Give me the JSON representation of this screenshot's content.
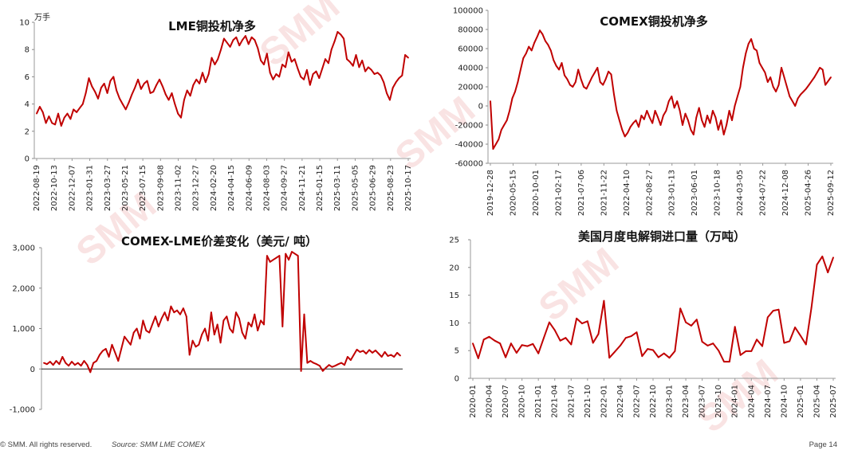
{
  "page": {
    "copyright": "© SMM. All rights reserved.",
    "source": "Source: SMM  LME  COMEX",
    "page_number": "Page 14",
    "watermark": "SMM",
    "line_color": "#c00000"
  },
  "chart_data": [
    {
      "type": "line",
      "title": "LME铜投机净多",
      "unit_label": "万手",
      "ylim": [
        0,
        10
      ],
      "yticks": [
        "0",
        "2",
        "4",
        "6",
        "8",
        "10"
      ],
      "xtick_labels": [
        "2022-08-19",
        "2022-10-13",
        "2022-12-07",
        "2023-01-31",
        "2023-03-27",
        "2023-05-21",
        "2023-07-15",
        "2023-09-08",
        "2023-11-02",
        "2023-12-27",
        "2024-02-20",
        "2024-04-15",
        "2024-06-09",
        "2024-08-03",
        "2024-09-27",
        "2024-11-21",
        "2025-01-15",
        "2025-03-11",
        "2025-05-05",
        "2025-06-29",
        "2025-08-23",
        "2025-10-17"
      ],
      "series": [
        {
          "values": [
            3.3,
            3.8,
            3.4,
            2.6,
            3.1,
            2.6,
            2.5,
            3.3,
            2.4,
            3.0,
            3.3,
            2.9,
            3.6,
            3.4,
            3.7,
            4.0,
            4.8,
            5.9,
            5.3,
            4.9,
            4.4,
            5.2,
            5.5,
            4.8,
            5.7,
            6.0,
            5.0,
            4.4,
            4.0,
            3.6,
            4.1,
            4.7,
            5.2,
            5.8,
            5.1,
            5.5,
            5.7,
            4.8,
            4.9,
            5.4,
            5.8,
            5.3,
            4.7,
            4.3,
            4.8,
            4.0,
            3.3,
            3.0,
            4.3,
            5.0,
            4.6,
            5.4,
            5.8,
            5.5,
            6.3,
            5.6,
            6.2,
            7.4,
            6.9,
            7.3,
            8.0,
            8.8,
            8.5,
            8.2,
            8.7,
            8.9,
            8.3,
            8.7,
            9.0,
            8.4,
            8.9,
            8.7,
            8.1,
            7.2,
            6.9,
            7.7,
            6.3,
            5.8,
            6.2,
            6.0,
            6.9,
            6.7,
            7.8,
            7.1,
            7.3,
            6.6,
            6.0,
            5.8,
            6.5,
            5.4,
            6.2,
            6.4,
            5.9,
            6.6,
            7.3,
            7.0,
            8.0,
            8.6,
            9.3,
            9.1,
            8.8,
            7.3,
            7.1,
            6.8,
            7.6,
            6.7,
            7.2,
            6.4,
            6.7,
            6.5,
            6.2,
            6.3,
            6.1,
            5.6,
            4.8,
            4.3,
            5.2,
            5.6,
            5.9,
            6.1,
            7.6,
            7.4
          ]
        }
      ]
    },
    {
      "type": "line",
      "title": "COMEX铜投机净多",
      "ylim": [
        -60000,
        100000
      ],
      "yticks": [
        "-60000",
        "-40000",
        "-20000",
        "0",
        "20000",
        "40000",
        "60000",
        "80000",
        "100000"
      ],
      "xtick_labels": [
        "2019-12-28",
        "2020-05-15",
        "2020-10-01",
        "2021-02-17",
        "2021-07-06",
        "2021-11-22",
        "2022-04-10",
        "2022-08-27",
        "2023-01-13",
        "2023-06-01",
        "2023-10-18",
        "2024-03-05",
        "2024-07-22",
        "2024-12-08",
        "2025-04-26",
        "2025-09-12"
      ],
      "series": [
        {
          "values": [
            5000,
            -45000,
            -40000,
            -35000,
            -25000,
            -20000,
            -15000,
            -5000,
            8000,
            15000,
            25000,
            38000,
            50000,
            55000,
            62000,
            58000,
            66000,
            72000,
            79000,
            75000,
            68000,
            64000,
            58000,
            48000,
            42000,
            38000,
            45000,
            32000,
            28000,
            22000,
            20000,
            25000,
            38000,
            28000,
            20000,
            18000,
            24000,
            30000,
            35000,
            40000,
            25000,
            22000,
            28000,
            36000,
            33000,
            12000,
            -5000,
            -15000,
            -25000,
            -32000,
            -28000,
            -22000,
            -18000,
            -15000,
            -22000,
            -10000,
            -14000,
            -5000,
            -12000,
            -18000,
            -5000,
            -12000,
            -20000,
            -10000,
            -5000,
            5000,
            10000,
            -2000,
            5000,
            -5000,
            -20000,
            -8000,
            -15000,
            -25000,
            -30000,
            -12000,
            -2000,
            -15000,
            -22000,
            -10000,
            -18000,
            -5000,
            -12000,
            -25000,
            -15000,
            -30000,
            -20000,
            -5000,
            -15000,
            0,
            10000,
            20000,
            40000,
            55000,
            65000,
            70000,
            60000,
            58000,
            45000,
            40000,
            35000,
            25000,
            30000,
            20000,
            15000,
            22000,
            40000,
            30000,
            20000,
            10000,
            5000,
            0,
            8000,
            12000,
            15000,
            18000,
            22000,
            26000,
            30000,
            35000,
            40000,
            38000,
            22000,
            26000,
            30000
          ]
        }
      ]
    },
    {
      "type": "line",
      "title": "COMEX-LME价差变化（美元/ 吨）",
      "ylim": [
        -1000,
        3000
      ],
      "yticks": [
        "-1,000",
        "0",
        "1,000",
        "2,000",
        "3,000"
      ],
      "series": [
        {
          "values": [
            150,
            120,
            180,
            100,
            200,
            120,
            300,
            150,
            80,
            180,
            100,
            150,
            80,
            200,
            100,
            -80,
            150,
            200,
            350,
            450,
            500,
            300,
            600,
            400,
            200,
            500,
            800,
            700,
            600,
            900,
            1000,
            750,
            1200,
            950,
            900,
            1100,
            1300,
            1050,
            1250,
            1400,
            1200,
            1550,
            1400,
            1450,
            1350,
            1500,
            1300,
            350,
            700,
            550,
            600,
            850,
            1000,
            700,
            1400,
            850,
            1100,
            650,
            1200,
            1300,
            1000,
            900,
            1400,
            1250,
            900,
            750,
            1150,
            1050,
            1350,
            950,
            1200,
            1100,
            2800,
            2650,
            2700,
            2750,
            2800,
            1050,
            2850,
            2700,
            2900,
            2850,
            2800,
            -50,
            1350,
            150,
            200,
            150,
            120,
            80,
            -50,
            30,
            100,
            50,
            80,
            120,
            150,
            100,
            300,
            220,
            350,
            480,
            420,
            450,
            380,
            470,
            400,
            460,
            380,
            300,
            420,
            320,
            350,
            300,
            400,
            330
          ]
        }
      ]
    },
    {
      "type": "line",
      "title": "美国月度电解铜进口量（万吨）",
      "ylim": [
        0,
        25
      ],
      "yticks": [
        "0",
        "5",
        "10",
        "15",
        "20",
        "25"
      ],
      "xtick_labels": [
        "2020-01",
        "2020-04",
        "2020-07",
        "2020-10",
        "2021-01",
        "2021-04",
        "2021-07",
        "2021-10",
        "2022-01",
        "2022-04",
        "2022-07",
        "2022-10",
        "2023-01",
        "2023-04",
        "2023-07",
        "2023-10",
        "2024-01",
        "2024-04",
        "2024-07",
        "2024-10",
        "2025-01",
        "2025-04",
        "2025-07"
      ],
      "series": [
        {
          "values": [
            6.3,
            3.6,
            7.0,
            7.5,
            6.8,
            6.3,
            3.8,
            6.3,
            4.6,
            6.0,
            5.8,
            6.2,
            4.5,
            7.3,
            10.1,
            8.7,
            6.8,
            7.3,
            6.1,
            10.8,
            9.9,
            10.3,
            6.4,
            8.0,
            14.0,
            3.7,
            4.8,
            5.9,
            7.3,
            7.6,
            8.3,
            4.0,
            5.3,
            5.1,
            3.8,
            4.5,
            3.7,
            4.9,
            12.6,
            10.1,
            9.5,
            10.6,
            6.6,
            5.9,
            6.3,
            5.0,
            3.0,
            3.0,
            9.3,
            4.2,
            4.9,
            4.9,
            7.0,
            5.8,
            11.0,
            12.2,
            12.4,
            6.4,
            6.7,
            9.2,
            7.7,
            6.1,
            12.7,
            20.5,
            22.0,
            19.1,
            21.8
          ]
        }
      ]
    }
  ]
}
